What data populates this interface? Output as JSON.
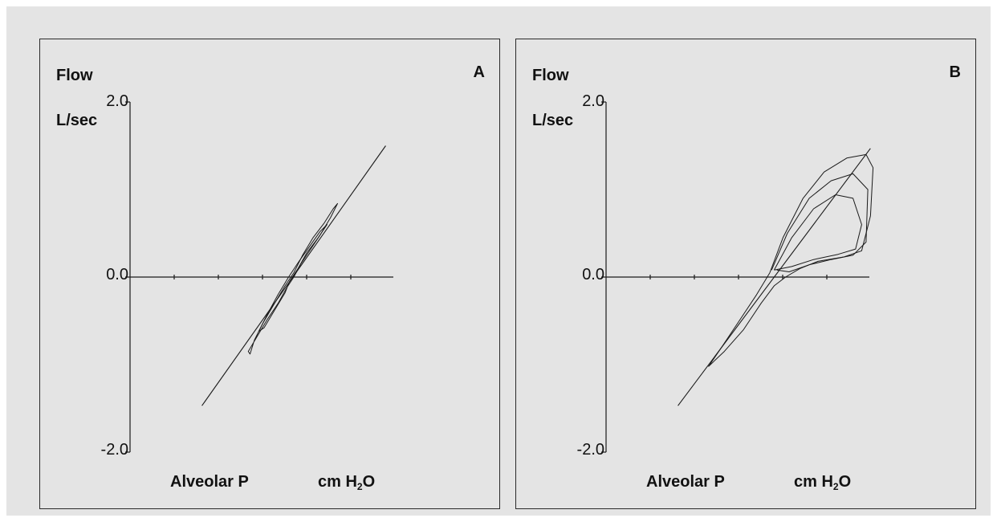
{
  "chart_data": [
    {
      "type": "line",
      "panel_label": "A",
      "ylabel": "Flow",
      "yunit": "L/sec",
      "xlabel": "Alveolar P",
      "xunit": [
        "cm H",
        "2",
        "O"
      ],
      "ylim": [
        -2.0,
        2.0
      ],
      "yticks": [
        "2.0",
        "0.0",
        "-2.0"
      ],
      "grid": false,
      "series": [
        {
          "kind": "reference-line",
          "x": [
            -1.05,
            1.05
          ],
          "y": [
            -1.47,
            1.5
          ]
        },
        {
          "kind": "loop",
          "x": [
            0.0,
            0.08,
            0.18,
            0.3,
            0.42,
            0.5,
            0.45,
            0.35,
            0.22,
            0.1,
            0.0,
            -0.1,
            -0.22,
            -0.35,
            -0.45,
            -0.5,
            -0.52,
            -0.42,
            -0.3,
            -0.18,
            -0.08,
            0.0
          ],
          "y": [
            0.0,
            0.15,
            0.3,
            0.48,
            0.68,
            0.84,
            0.78,
            0.62,
            0.45,
            0.25,
            0.05,
            -0.1,
            -0.3,
            -0.52,
            -0.72,
            -0.88,
            -0.85,
            -0.68,
            -0.48,
            -0.3,
            -0.12,
            0.0
          ]
        },
        {
          "kind": "loop",
          "x": [
            -0.05,
            0.05,
            0.15,
            0.28,
            0.38,
            0.3,
            0.18,
            0.06,
            -0.06,
            -0.18,
            -0.3,
            -0.4,
            -0.34,
            -0.22,
            -0.1,
            -0.05
          ],
          "y": [
            -0.05,
            0.1,
            0.28,
            0.45,
            0.6,
            0.52,
            0.35,
            0.18,
            0.0,
            -0.2,
            -0.42,
            -0.62,
            -0.58,
            -0.38,
            -0.18,
            -0.05
          ]
        }
      ]
    },
    {
      "type": "line",
      "panel_label": "B",
      "ylabel": "Flow",
      "yunit": "L/sec",
      "xlabel": "Alveolar P",
      "xunit": [
        "cm H",
        "2",
        "O"
      ],
      "ylim": [
        -2.0,
        2.0
      ],
      "yticks": [
        "2.0",
        "0.0",
        "-2.0"
      ],
      "grid": false,
      "series": [
        {
          "kind": "reference-line",
          "x": [
            -1.05,
            1.15
          ],
          "y": [
            -1.47,
            1.47
          ]
        },
        {
          "kind": "loop",
          "x": [
            0.0,
            0.15,
            0.38,
            0.62,
            0.88,
            1.1,
            1.18,
            1.15,
            1.05,
            0.85,
            0.55,
            0.35,
            0.18,
            0.05,
            -0.1,
            -0.3,
            -0.52,
            -0.7,
            -0.55,
            -0.35,
            -0.15,
            0.0
          ],
          "y": [
            0.05,
            0.45,
            0.9,
            1.2,
            1.36,
            1.4,
            1.25,
            0.7,
            0.3,
            0.23,
            0.18,
            0.1,
            0.0,
            -0.1,
            -0.3,
            -0.6,
            -0.85,
            -1.02,
            -0.8,
            -0.5,
            -0.2,
            0.05
          ]
        },
        {
          "kind": "loop",
          "x": [
            0.02,
            0.2,
            0.45,
            0.7,
            0.95,
            1.12,
            1.1,
            0.95,
            0.7,
            0.45,
            0.22,
            0.08
          ],
          "y": [
            0.08,
            0.5,
            0.9,
            1.1,
            1.18,
            1.0,
            0.4,
            0.25,
            0.2,
            0.14,
            0.06,
            0.08
          ]
        },
        {
          "kind": "loop",
          "x": [
            0.05,
            0.25,
            0.5,
            0.75,
            0.95,
            1.05,
            0.98,
            0.78,
            0.5,
            0.25,
            0.05
          ],
          "y": [
            0.08,
            0.45,
            0.78,
            0.94,
            0.9,
            0.6,
            0.32,
            0.26,
            0.2,
            0.12,
            0.08
          ]
        }
      ]
    }
  ]
}
